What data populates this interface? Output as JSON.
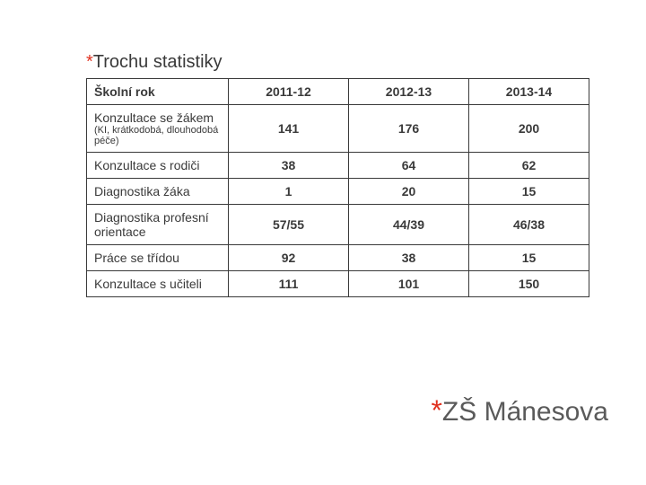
{
  "title": {
    "asterisk": "*",
    "text": "Trochu statistiky"
  },
  "table": {
    "headers": [
      "Školní rok",
      "2011-12",
      "2012-13",
      "2013-14"
    ],
    "rows": [
      {
        "label": "Konzultace se žákem",
        "sub": "(KI, krátkodobá, dlouhodobá péče)",
        "c1": "141",
        "c2": "176",
        "c3": "200"
      },
      {
        "label": "Konzultace s rodiči",
        "sub": "",
        "c1": "38",
        "c2": "64",
        "c3": "62"
      },
      {
        "label": "Diagnostika žáka",
        "sub": "",
        "c1": "1",
        "c2": "20",
        "c3": "15"
      },
      {
        "label": "Diagnostika profesní orientace",
        "sub": "",
        "c1": "57/55",
        "c2": "44/39",
        "c3": "46/38"
      },
      {
        "label": "Práce se třídou",
        "sub": "",
        "c1": "92",
        "c2": "38",
        "c3": "15"
      },
      {
        "label": "Konzultace s učiteli",
        "sub": "",
        "c1": "111",
        "c2": "101",
        "c3": "150"
      }
    ]
  },
  "footer": {
    "asterisk": "*",
    "text": "ZŠ Mánesova"
  },
  "colors": {
    "accent": "#e0301e",
    "text": "#3a3a3a",
    "footer_text": "#5a5a5a",
    "background": "#ffffff",
    "border": "#3a3a3a"
  }
}
